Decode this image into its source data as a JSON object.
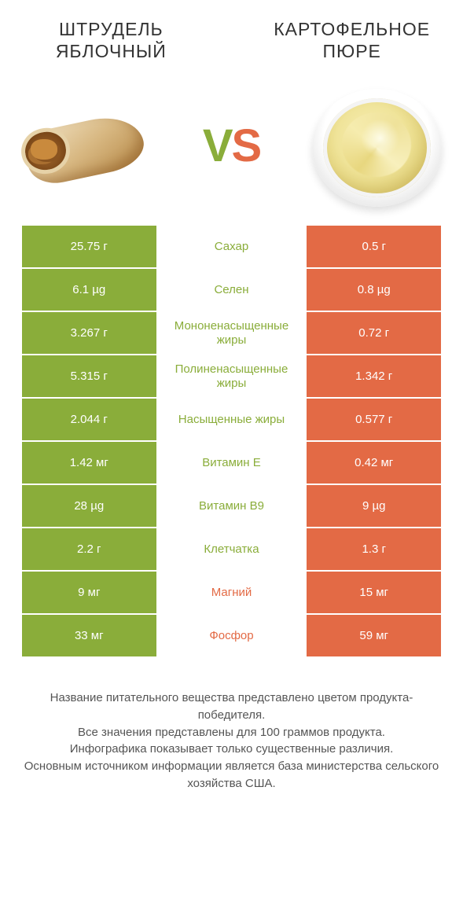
{
  "colors": {
    "green": "#8aad3a",
    "orange": "#e36a45",
    "text": "#333333",
    "footer": "#555555",
    "bg": "#ffffff"
  },
  "header": {
    "left_title": "ШТРУДЕЛЬ ЯБЛОЧНЫЙ",
    "right_title": "КАРТОФЕЛЬНОЕ ПЮРЕ",
    "vs_v": "V",
    "vs_s": "S"
  },
  "rows": [
    {
      "left": "25.75 г",
      "label": "Сахар",
      "right": "0.5 г",
      "winner": "left"
    },
    {
      "left": "6.1 µg",
      "label": "Селен",
      "right": "0.8 µg",
      "winner": "left"
    },
    {
      "left": "3.267 г",
      "label": "Мононенасыщенные жиры",
      "right": "0.72 г",
      "winner": "left"
    },
    {
      "left": "5.315 г",
      "label": "Полиненасыщенные жиры",
      "right": "1.342 г",
      "winner": "left"
    },
    {
      "left": "2.044 г",
      "label": "Насыщенные жиры",
      "right": "0.577 г",
      "winner": "left"
    },
    {
      "left": "1.42 мг",
      "label": "Витамин E",
      "right": "0.42 мг",
      "winner": "left"
    },
    {
      "left": "28 µg",
      "label": "Витамин B9",
      "right": "9 µg",
      "winner": "left"
    },
    {
      "left": "2.2 г",
      "label": "Клетчатка",
      "right": "1.3 г",
      "winner": "left"
    },
    {
      "left": "9 мг",
      "label": "Магний",
      "right": "15 мг",
      "winner": "right"
    },
    {
      "left": "33 мг",
      "label": "Фосфор",
      "right": "59 мг",
      "winner": "right"
    }
  ],
  "footer": {
    "line1": "Название питательного вещества представлено цветом продукта-победителя.",
    "line2": "Все значения представлены для 100 граммов продукта.",
    "line3": "Инфографика показывает только существенные различия.",
    "line4": "Основным источником информации является база министерства сельского хозяйства США."
  }
}
